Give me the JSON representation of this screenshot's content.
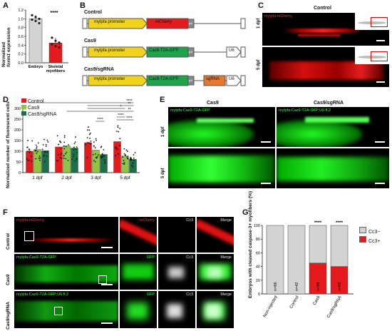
{
  "panels": {
    "A": "A",
    "B": "B",
    "C": "C",
    "D": "D",
    "E": "E",
    "F": "F",
    "G": "G"
  },
  "panelA": {
    "ylabel": "Normalized foxm1 expression",
    "ylabel_pre": "Normalized",
    "ylabel_gene": "foxm1",
    "ylabel_post": "expression",
    "significance": "****",
    "colors": {
      "embryo": "#d3d3d3",
      "myofibers": "#e41a1c"
    },
    "chart_data": {
      "type": "bar",
      "categories": [
        "Embryo",
        "Skeletal myofibers"
      ],
      "values": [
        1.0,
        0.45
      ],
      "ylim": [
        0,
        1.2
      ],
      "yticks": [
        "0.0",
        "0.2",
        "0.4",
        "0.6",
        "0.8",
        "1.0",
        "1.2"
      ],
      "points": [
        [
          1.08,
          1.04,
          1.0,
          0.98,
          0.95,
          0.9
        ],
        [
          0.57,
          0.5,
          0.46,
          0.42,
          0.38,
          0.35
        ]
      ]
    }
  },
  "panelB": {
    "constructs": [
      {
        "title": "Control",
        "promoter": "mylpfa promoter",
        "gene": "mCherry",
        "pa": "pA"
      },
      {
        "title": "Cas9",
        "promoter": "mylpfa promoter",
        "gene": "Cas9-T2A-GFP",
        "pa": "pA",
        "u6": "U6"
      },
      {
        "title": "Cas9/sgRNA",
        "promoter": "mylpfa promoter",
        "gene": "Cas9-T2A-GFP",
        "pa": "pA",
        "sgrna": "sgRNA",
        "u6": "U6"
      }
    ],
    "colors": {
      "promoter": "#f2d31b",
      "mcherry": "#e41a1c",
      "cas9": "#1fa34a",
      "sgrna": "#e8772e",
      "u6": "#ffffff",
      "pa": "#888888"
    }
  },
  "panelC": {
    "title": "Control",
    "overlay": "mylpfa:mCherry",
    "rows": [
      "1 dpf",
      "5 dpf"
    ]
  },
  "panelD": {
    "ylabel": "Normalized number of fluorescent cells",
    "legend": [
      "Control",
      "Cas9",
      "Cas9/sgRNA"
    ],
    "colors": [
      "#e41a1c",
      "#8fc641",
      "#1b6f4b"
    ],
    "sig": [
      "****",
      "**",
      "*",
      "**",
      "****",
      "****",
      "****"
    ],
    "chart_data": {
      "type": "bar",
      "categories": [
        "1 dpf",
        "2 dpf",
        "3 dpf",
        "5 dpf"
      ],
      "ylim": [
        0,
        300
      ],
      "yticks": [
        "0",
        "50",
        "100",
        "150",
        "200",
        "250",
        "300"
      ],
      "series": [
        {
          "name": "Control",
          "values": [
            100,
            120,
            140,
            145
          ]
        },
        {
          "name": "Cas9",
          "values": [
            108,
            125,
            105,
            78
          ]
        },
        {
          "name": "Cas9/sgRNA",
          "values": [
            103,
            115,
            85,
            62
          ]
        }
      ]
    }
  },
  "panelE": {
    "cols": [
      "Cas9",
      "Cas9/sgRNA"
    ],
    "overlays": [
      "mylpfa:Cas9-T2A-GFP",
      "mylpfa:Cas9-T2A-GFP;U6:fl.2"
    ],
    "rows": [
      "1 dpf",
      "5 dpf"
    ]
  },
  "panelF": {
    "rows": [
      "Control",
      "Cas9",
      "Cas9/sgRNA"
    ],
    "overlays": [
      "mylpfa:mCherry",
      "mylpfa:Cas9-T2A-GFP",
      "mylpfa:Cas9-T2A-GFP;U6:fl.2"
    ],
    "channels": [
      [
        "mCherry",
        "Cc3",
        "Merge"
      ],
      [
        "GFP",
        "Cc3",
        "Merge"
      ],
      [
        "GFP",
        "Cc3",
        "Merge"
      ]
    ]
  },
  "panelG": {
    "ylabel": "Embryos with cleaved caspase-3+ myofibers (%)",
    "legend": [
      "Cc3−",
      "Cc3+"
    ],
    "colors": {
      "neg": "#d3d3d3",
      "pos": "#e41a1c"
    },
    "sig": [
      "",
      "",
      "****",
      "****"
    ],
    "chart_data": {
      "type": "bar",
      "categories": [
        "Non-injected",
        "Control",
        "Cas9",
        "Cas9/sgRNA"
      ],
      "ylim": [
        0,
        100
      ],
      "yticks": [
        "0",
        "20",
        "40",
        "60",
        "80",
        "100"
      ],
      "n_labels": [
        "n=66",
        "n=42",
        "n=98",
        "n=65"
      ],
      "series": [
        {
          "name": "Cc3+",
          "values": [
            0,
            0,
            45,
            40
          ]
        },
        {
          "name": "Cc3−",
          "values": [
            100,
            100,
            55,
            60
          ]
        }
      ]
    }
  }
}
